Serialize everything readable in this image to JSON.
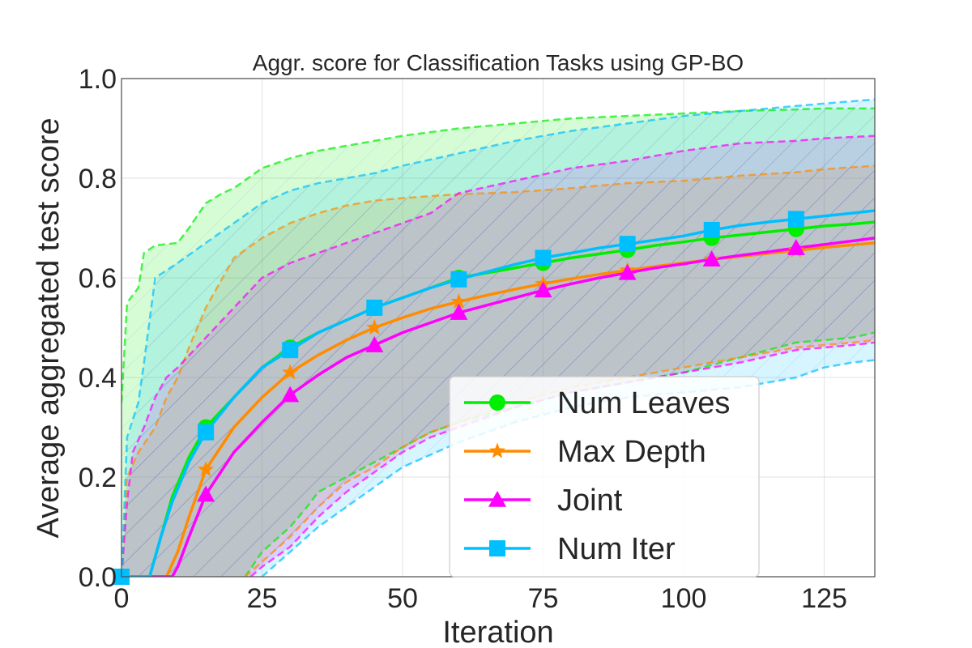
{
  "chart_data": {
    "type": "line",
    "title": "Aggr. score for Classification Tasks using GP-BO",
    "xlabel": "Iteration",
    "ylabel": "Average aggregated test score",
    "xlim": [
      0,
      134
    ],
    "ylim": [
      0.0,
      1.0
    ],
    "grid": true,
    "legend_position": "lower-right",
    "x_ticks": [
      0,
      25,
      50,
      75,
      100,
      125
    ],
    "x_tick_labels": [
      "0",
      "25",
      "50",
      "75",
      "100",
      "125"
    ],
    "y_ticks": [
      0.0,
      0.2,
      0.4,
      0.6,
      0.8,
      1.0
    ],
    "y_tick_labels": [
      "0.0",
      "0.2",
      "0.4",
      "0.6",
      "0.8",
      "1.0"
    ],
    "series": [
      {
        "name": "Num Leaves",
        "color": "#00ee00",
        "marker": "circle",
        "mean": [
          [
            0,
            0
          ],
          [
            5,
            0
          ],
          [
            7,
            0.08
          ],
          [
            9,
            0.16
          ],
          [
            12,
            0.24
          ],
          [
            15,
            0.3
          ],
          [
            20,
            0.36
          ],
          [
            25,
            0.42
          ],
          [
            30,
            0.46
          ],
          [
            35,
            0.49
          ],
          [
            40,
            0.515
          ],
          [
            45,
            0.54
          ],
          [
            50,
            0.56
          ],
          [
            55,
            0.58
          ],
          [
            60,
            0.6
          ],
          [
            65,
            0.61
          ],
          [
            70,
            0.62
          ],
          [
            75,
            0.63
          ],
          [
            80,
            0.64
          ],
          [
            85,
            0.648
          ],
          [
            90,
            0.656
          ],
          [
            95,
            0.665
          ],
          [
            100,
            0.672
          ],
          [
            105,
            0.68
          ],
          [
            110,
            0.686
          ],
          [
            115,
            0.692
          ],
          [
            120,
            0.698
          ],
          [
            125,
            0.704
          ],
          [
            130,
            0.708
          ],
          [
            134,
            0.712
          ]
        ],
        "upper": [
          [
            0,
            0.35
          ],
          [
            1,
            0.55
          ],
          [
            3,
            0.58
          ],
          [
            4,
            0.65
          ],
          [
            6,
            0.665
          ],
          [
            10,
            0.67
          ],
          [
            12,
            0.7
          ],
          [
            15,
            0.75
          ],
          [
            18,
            0.77
          ],
          [
            20,
            0.78
          ],
          [
            25,
            0.82
          ],
          [
            30,
            0.84
          ],
          [
            35,
            0.855
          ],
          [
            40,
            0.865
          ],
          [
            45,
            0.875
          ],
          [
            50,
            0.885
          ],
          [
            60,
            0.9
          ],
          [
            70,
            0.91
          ],
          [
            80,
            0.92
          ],
          [
            90,
            0.925
          ],
          [
            100,
            0.93
          ],
          [
            110,
            0.935
          ],
          [
            120,
            0.938
          ],
          [
            125,
            0.94
          ],
          [
            134,
            0.94
          ]
        ],
        "lower": [
          [
            22,
            0
          ],
          [
            25,
            0.05
          ],
          [
            28,
            0.08
          ],
          [
            30,
            0.1
          ],
          [
            33,
            0.14
          ],
          [
            35,
            0.17
          ],
          [
            40,
            0.2
          ],
          [
            45,
            0.23
          ],
          [
            50,
            0.26
          ],
          [
            55,
            0.29
          ],
          [
            60,
            0.31
          ],
          [
            70,
            0.34
          ],
          [
            80,
            0.37
          ],
          [
            90,
            0.39
          ],
          [
            100,
            0.41
          ],
          [
            110,
            0.44
          ],
          [
            120,
            0.47
          ],
          [
            125,
            0.475
          ],
          [
            130,
            0.48
          ],
          [
            134,
            0.49
          ]
        ],
        "markers_x": [
          0,
          15,
          30,
          45,
          60,
          75,
          90,
          105,
          120
        ]
      },
      {
        "name": "Max Depth",
        "color": "#ff8c00",
        "marker": "star",
        "mean": [
          [
            0,
            0
          ],
          [
            8,
            0
          ],
          [
            10,
            0.05
          ],
          [
            12,
            0.12
          ],
          [
            15,
            0.215
          ],
          [
            20,
            0.3
          ],
          [
            25,
            0.36
          ],
          [
            30,
            0.41
          ],
          [
            35,
            0.445
          ],
          [
            40,
            0.475
          ],
          [
            45,
            0.5
          ],
          [
            50,
            0.52
          ],
          [
            55,
            0.538
          ],
          [
            60,
            0.552
          ],
          [
            65,
            0.565
          ],
          [
            70,
            0.577
          ],
          [
            75,
            0.588
          ],
          [
            80,
            0.598
          ],
          [
            85,
            0.607
          ],
          [
            90,
            0.615
          ],
          [
            95,
            0.623
          ],
          [
            100,
            0.63
          ],
          [
            105,
            0.637
          ],
          [
            110,
            0.643
          ],
          [
            115,
            0.649
          ],
          [
            120,
            0.655
          ],
          [
            125,
            0.661
          ],
          [
            130,
            0.666
          ],
          [
            134,
            0.67
          ]
        ],
        "upper": [
          [
            0,
            0
          ],
          [
            1,
            0.2
          ],
          [
            3,
            0.25
          ],
          [
            6,
            0.3
          ],
          [
            8,
            0.36
          ],
          [
            10,
            0.4
          ],
          [
            12,
            0.46
          ],
          [
            15,
            0.54
          ],
          [
            18,
            0.6
          ],
          [
            20,
            0.64
          ],
          [
            25,
            0.68
          ],
          [
            30,
            0.71
          ],
          [
            35,
            0.73
          ],
          [
            40,
            0.745
          ],
          [
            45,
            0.755
          ],
          [
            50,
            0.76
          ],
          [
            60,
            0.768
          ],
          [
            70,
            0.772
          ],
          [
            80,
            0.78
          ],
          [
            90,
            0.79
          ],
          [
            100,
            0.795
          ],
          [
            110,
            0.805
          ],
          [
            120,
            0.812
          ],
          [
            125,
            0.818
          ],
          [
            130,
            0.822
          ],
          [
            134,
            0.825
          ]
        ],
        "lower": [
          [
            22,
            0
          ],
          [
            25,
            0.03
          ],
          [
            30,
            0.08
          ],
          [
            35,
            0.14
          ],
          [
            40,
            0.19
          ],
          [
            45,
            0.22
          ],
          [
            50,
            0.26
          ],
          [
            55,
            0.29
          ],
          [
            60,
            0.31
          ],
          [
            70,
            0.35
          ],
          [
            80,
            0.38
          ],
          [
            90,
            0.4
          ],
          [
            100,
            0.42
          ],
          [
            110,
            0.44
          ],
          [
            120,
            0.46
          ],
          [
            125,
            0.465
          ],
          [
            130,
            0.47
          ],
          [
            134,
            0.475
          ]
        ],
        "markers_x": [
          15,
          30,
          45,
          60,
          75,
          90,
          105,
          120
        ]
      },
      {
        "name": "Joint",
        "color": "#ff00ff",
        "marker": "triangle",
        "mean": [
          [
            0,
            0
          ],
          [
            9,
            0
          ],
          [
            10,
            0.02
          ],
          [
            12,
            0.08
          ],
          [
            15,
            0.165
          ],
          [
            20,
            0.25
          ],
          [
            25,
            0.31
          ],
          [
            30,
            0.365
          ],
          [
            35,
            0.405
          ],
          [
            40,
            0.44
          ],
          [
            45,
            0.465
          ],
          [
            50,
            0.49
          ],
          [
            55,
            0.51
          ],
          [
            60,
            0.53
          ],
          [
            65,
            0.545
          ],
          [
            70,
            0.56
          ],
          [
            75,
            0.575
          ],
          [
            80,
            0.588
          ],
          [
            85,
            0.6
          ],
          [
            90,
            0.61
          ],
          [
            95,
            0.62
          ],
          [
            100,
            0.628
          ],
          [
            105,
            0.637
          ],
          [
            110,
            0.645
          ],
          [
            115,
            0.652
          ],
          [
            120,
            0.66
          ],
          [
            125,
            0.667
          ],
          [
            130,
            0.674
          ],
          [
            134,
            0.68
          ]
        ],
        "upper": [
          [
            0,
            0
          ],
          [
            1,
            0.15
          ],
          [
            2,
            0.25
          ],
          [
            4,
            0.3
          ],
          [
            6,
            0.36
          ],
          [
            8,
            0.4
          ],
          [
            10,
            0.42
          ],
          [
            15,
            0.48
          ],
          [
            20,
            0.54
          ],
          [
            25,
            0.6
          ],
          [
            30,
            0.63
          ],
          [
            35,
            0.65
          ],
          [
            40,
            0.67
          ],
          [
            45,
            0.69
          ],
          [
            50,
            0.71
          ],
          [
            55,
            0.73
          ],
          [
            60,
            0.77
          ],
          [
            70,
            0.795
          ],
          [
            80,
            0.82
          ],
          [
            90,
            0.835
          ],
          [
            100,
            0.855
          ],
          [
            110,
            0.87
          ],
          [
            120,
            0.875
          ],
          [
            125,
            0.88
          ],
          [
            134,
            0.885
          ]
        ],
        "lower": [
          [
            23,
            0
          ],
          [
            25,
            0.02
          ],
          [
            30,
            0.06
          ],
          [
            35,
            0.12
          ],
          [
            40,
            0.17
          ],
          [
            45,
            0.21
          ],
          [
            50,
            0.25
          ],
          [
            55,
            0.28
          ],
          [
            60,
            0.3
          ],
          [
            70,
            0.34
          ],
          [
            80,
            0.37
          ],
          [
            90,
            0.39
          ],
          [
            100,
            0.41
          ],
          [
            110,
            0.43
          ],
          [
            120,
            0.455
          ],
          [
            125,
            0.46
          ],
          [
            130,
            0.465
          ],
          [
            134,
            0.47
          ]
        ],
        "markers_x": [
          15,
          30,
          45,
          60,
          75,
          90,
          105,
          120
        ]
      },
      {
        "name": "Num Iter",
        "color": "#00bfff",
        "marker": "square",
        "mean": [
          [
            0,
            0
          ],
          [
            5,
            0
          ],
          [
            7,
            0.08
          ],
          [
            9,
            0.15
          ],
          [
            12,
            0.23
          ],
          [
            15,
            0.29
          ],
          [
            20,
            0.36
          ],
          [
            25,
            0.42
          ],
          [
            30,
            0.455
          ],
          [
            35,
            0.49
          ],
          [
            40,
            0.515
          ],
          [
            45,
            0.54
          ],
          [
            50,
            0.56
          ],
          [
            55,
            0.58
          ],
          [
            60,
            0.597
          ],
          [
            65,
            0.612
          ],
          [
            70,
            0.627
          ],
          [
            75,
            0.64
          ],
          [
            80,
            0.65
          ],
          [
            85,
            0.66
          ],
          [
            90,
            0.668
          ],
          [
            95,
            0.676
          ],
          [
            100,
            0.684
          ],
          [
            105,
            0.696
          ],
          [
            110,
            0.705
          ],
          [
            115,
            0.712
          ],
          [
            120,
            0.718
          ],
          [
            125,
            0.724
          ],
          [
            130,
            0.73
          ],
          [
            134,
            0.735
          ]
        ],
        "upper": [
          [
            0,
            0
          ],
          [
            1,
            0.28
          ],
          [
            3,
            0.35
          ],
          [
            4,
            0.43
          ],
          [
            6,
            0.6
          ],
          [
            10,
            0.63
          ],
          [
            15,
            0.67
          ],
          [
            20,
            0.71
          ],
          [
            25,
            0.75
          ],
          [
            30,
            0.775
          ],
          [
            35,
            0.79
          ],
          [
            40,
            0.8
          ],
          [
            45,
            0.81
          ],
          [
            50,
            0.825
          ],
          [
            60,
            0.85
          ],
          [
            70,
            0.875
          ],
          [
            80,
            0.895
          ],
          [
            90,
            0.91
          ],
          [
            100,
            0.925
          ],
          [
            110,
            0.935
          ],
          [
            120,
            0.945
          ],
          [
            125,
            0.95
          ],
          [
            134,
            0.958
          ]
        ],
        "lower": [
          [
            25,
            0
          ],
          [
            30,
            0.05
          ],
          [
            35,
            0.1
          ],
          [
            40,
            0.14
          ],
          [
            45,
            0.18
          ],
          [
            50,
            0.22
          ],
          [
            55,
            0.245
          ],
          [
            60,
            0.27
          ],
          [
            70,
            0.31
          ],
          [
            80,
            0.34
          ],
          [
            90,
            0.36
          ],
          [
            100,
            0.37
          ],
          [
            110,
            0.38
          ],
          [
            120,
            0.4
          ],
          [
            125,
            0.42
          ],
          [
            130,
            0.43
          ],
          [
            134,
            0.435
          ]
        ],
        "markers_x": [
          0,
          15,
          30,
          45,
          60,
          75,
          90,
          105,
          120
        ]
      }
    ]
  }
}
